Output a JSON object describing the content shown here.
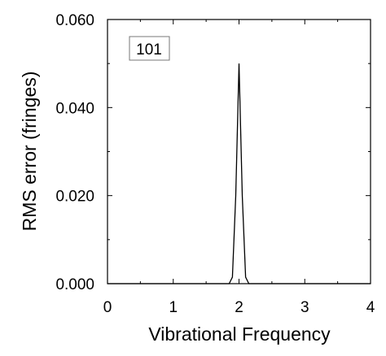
{
  "chart_data": {
    "type": "line",
    "title": "",
    "xlabel": "Vibrational Frequency",
    "ylabel": "RMS error (fringes)",
    "xlim": [
      0,
      4
    ],
    "ylim": [
      0,
      0.06
    ],
    "x_ticks": [
      0,
      1,
      2,
      3,
      4
    ],
    "x_tick_labels": [
      "0",
      "1",
      "2",
      "3",
      "4"
    ],
    "y_ticks": [
      0,
      0.02,
      0.04,
      0.06
    ],
    "y_tick_labels": [
      "0.000",
      "0.020",
      "0.040",
      "0.060"
    ],
    "grid": false,
    "legend": {
      "text": "101",
      "position": "top-left"
    },
    "series": [
      {
        "x": [
          0,
          1.85,
          1.9,
          1.95,
          2.0,
          2.05,
          2.1,
          2.15,
          4
        ],
        "y": [
          0,
          0,
          0.0015,
          0.02,
          0.05,
          0.02,
          0.0015,
          0,
          0
        ]
      }
    ]
  }
}
